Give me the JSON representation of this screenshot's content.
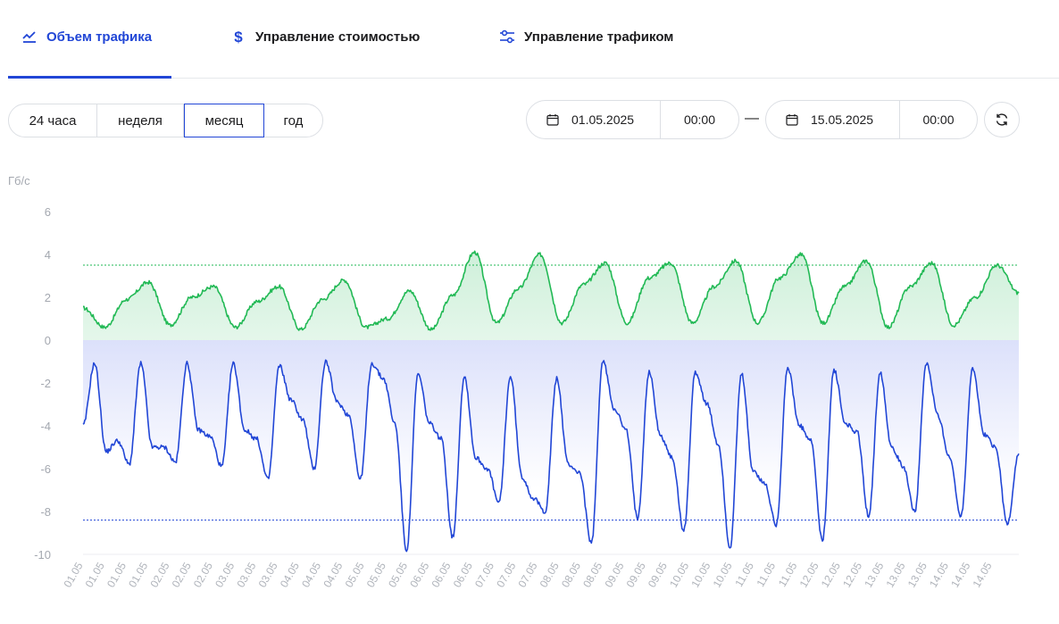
{
  "tabs": [
    {
      "label": "Объем трафика",
      "icon": "trending-line-icon",
      "active": true
    },
    {
      "label": "Управление стоимостью",
      "icon": "dollar-icon",
      "active": false
    },
    {
      "label": "Управление трафиком",
      "icon": "sliders-icon",
      "active": false
    }
  ],
  "period": {
    "options": [
      "24 часа",
      "неделя",
      "месяц",
      "год"
    ],
    "selected": "месяц"
  },
  "range": {
    "from_date": "01.05.2025",
    "from_time": "00:00",
    "separator": "—",
    "to_date": "15.05.2025",
    "to_time": "00:00"
  },
  "colors": {
    "accent": "#2146d6",
    "inbound": "#22b955",
    "outbound": "#2146d6"
  },
  "chart_data": {
    "type": "area",
    "ylabel": "Гб/с",
    "ylim": [
      -10,
      6
    ],
    "yticks": [
      6,
      4,
      2,
      0,
      -2,
      -4,
      -6,
      -8,
      -10
    ],
    "xticks": [
      "01.05",
      "01.05",
      "01.05",
      "01.05",
      "02.05",
      "02.05",
      "02.05",
      "03.05",
      "03.05",
      "03.05",
      "04.05",
      "04.05",
      "04.05",
      "05.05",
      "05.05",
      "05.05",
      "06.05",
      "06.05",
      "06.05",
      "07.05",
      "07.05",
      "07.05",
      "08.05",
      "08.05",
      "08.05",
      "09.05",
      "09.05",
      "09.05",
      "10.05",
      "10.05",
      "10.05",
      "11.05",
      "11.05",
      "11.05",
      "12.05",
      "12.05",
      "12.05",
      "13.05",
      "13.05",
      "13.05",
      "14.05",
      "14.05",
      "14.05"
    ],
    "x_start": "01.05.2025 00:00",
    "x_step": "8h",
    "reference_lines": [
      3.5,
      -8.4
    ],
    "series": [
      {
        "values": [
          1.5,
          0.6,
          1.9,
          2.7,
          0.7,
          2.0,
          2.5,
          0.6,
          1.8,
          2.5,
          0.5,
          1.9,
          2.8,
          0.6,
          1.0,
          2.3,
          0.5,
          2.1,
          4.1,
          0.8,
          2.4,
          4.0,
          0.8,
          2.6,
          3.6,
          0.8,
          2.9,
          3.6,
          0.8,
          2.5,
          3.7,
          0.8,
          2.9,
          4.0,
          0.8,
          2.5,
          3.7,
          0.6,
          2.5,
          3.6,
          0.7,
          2.0,
          3.5,
          2.2
        ]
      },
      {
        "values": [
          -4.0,
          -1.1,
          -5.2,
          -4.7,
          -5.8,
          -1.1,
          -5.0,
          -5.0,
          -5.7,
          -1.1,
          -4.2,
          -4.5,
          -5.9,
          -1.1,
          -4.2,
          -4.6,
          -6.5,
          -1.2,
          -2.8,
          -3.7,
          -6.0,
          -1.0,
          -2.9,
          -3.5,
          -6.5,
          -1.1,
          -1.8,
          -3.9,
          -9.8,
          -1.6,
          -3.9,
          -4.6,
          -9.2,
          -1.7,
          -5.5,
          -6.0,
          -7.6,
          -1.7,
          -6.4,
          -7.4,
          -8.0,
          -1.8,
          -5.8,
          -6.2,
          -9.5,
          -1.0,
          -3.2,
          -4.2,
          -8.3,
          -1.5,
          -4.5,
          -5.5,
          -8.9,
          -1.5,
          -3.0,
          -4.9,
          -9.7,
          -1.6,
          -6.1,
          -6.7,
          -8.6,
          -1.3,
          -4.0,
          -4.7,
          -9.4,
          -1.4,
          -3.9,
          -4.3,
          -8.2,
          -1.5,
          -5.0,
          -5.9,
          -8.0,
          -1.1,
          -3.5,
          -5.5,
          -8.2,
          -1.3,
          -4.4,
          -5.0,
          -8.6,
          -5.3
        ]
      }
    ]
  }
}
